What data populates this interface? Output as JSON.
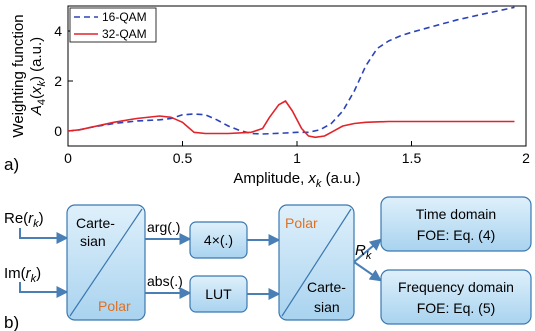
{
  "chart_data": {
    "type": "line",
    "panel_label": "a)",
    "xlabel": "Amplitude, ",
    "xlabel_var": "x",
    "xlabel_sub": "k",
    "xlabel_unit": " (a.u.)",
    "ylabel_line1": "Weighting function",
    "ylabel_f": "A",
    "ylabel_f_sub": "4",
    "ylabel_open": "(",
    "ylabel_var": "x",
    "ylabel_var_sub": "k",
    "ylabel_unit": ") (a.u.)",
    "xlim": [
      0,
      2
    ],
    "ylim": [
      -0.6,
      5
    ],
    "xticks": [
      0,
      0.5,
      1,
      1.5,
      2
    ],
    "xtick_labels": [
      "0",
      "0.5",
      "1",
      "1.5",
      "2"
    ],
    "yticks": [
      0,
      2,
      4
    ],
    "ytick_labels": [
      "0",
      "2",
      "4"
    ],
    "grid": false,
    "legend": "top-left",
    "series": [
      {
        "name": "16-QAM",
        "color": "#2b43b8",
        "dash": true,
        "x": [
          0,
          0.05,
          0.1,
          0.2,
          0.3,
          0.4,
          0.45,
          0.5,
          0.55,
          0.6,
          0.65,
          0.7,
          0.75,
          0.8,
          0.85,
          0.9,
          0.95,
          1.0,
          1.05,
          1.1,
          1.15,
          1.2,
          1.25,
          1.3,
          1.35,
          1.4,
          1.45,
          1.5,
          1.6,
          1.7,
          1.8,
          1.9,
          1.95
        ],
        "y": [
          0,
          0.05,
          0.15,
          0.3,
          0.4,
          0.45,
          0.5,
          0.65,
          0.68,
          0.65,
          0.45,
          0.2,
          0.02,
          -0.1,
          -0.12,
          -0.1,
          -0.08,
          -0.05,
          -0.05,
          0.05,
          0.3,
          0.8,
          1.6,
          2.6,
          3.3,
          3.6,
          3.8,
          3.95,
          4.2,
          4.45,
          4.65,
          4.85,
          4.95
        ]
      },
      {
        "name": "32-QAM",
        "color": "#e0242a",
        "dash": false,
        "x": [
          0,
          0.05,
          0.1,
          0.2,
          0.3,
          0.4,
          0.45,
          0.5,
          0.55,
          0.6,
          0.7,
          0.8,
          0.85,
          0.88,
          0.92,
          0.95,
          0.98,
          1.02,
          1.05,
          1.08,
          1.12,
          1.15,
          1.2,
          1.25,
          1.3,
          1.4,
          1.5,
          1.7,
          1.95
        ],
        "y": [
          0,
          0.05,
          0.15,
          0.35,
          0.5,
          0.6,
          0.55,
          0.35,
          -0.05,
          -0.1,
          -0.1,
          -0.05,
          0.1,
          0.55,
          1.05,
          1.2,
          0.8,
          0.1,
          -0.2,
          -0.25,
          -0.2,
          -0.05,
          0.2,
          0.3,
          0.35,
          0.38,
          0.38,
          0.38,
          0.38
        ]
      }
    ]
  },
  "diagram": {
    "panel_label": "b)",
    "input_re_prefix": "Re(",
    "input_re_var": "r",
    "input_re_sub": "k",
    "input_re_suffix": ")",
    "input_im_prefix": "Im(",
    "input_im_var": "r",
    "input_im_sub": "k",
    "input_im_suffix": ")",
    "converter1_top_line1": "Carte-",
    "converter1_top_line2": "sian",
    "converter1_bottom": "Polar",
    "arg_label": "arg(.)",
    "abs_label": "abs(.)",
    "multiply_block": "4×(.)",
    "lut_block": "LUT",
    "converter2_top": "Polar",
    "converter2_bottom_line1": "Carte-",
    "converter2_bottom_line2": "sian",
    "rk_var": "R",
    "rk_sub": "k",
    "time_line1": "Time domain",
    "time_line2": "FOE: Eq. (4)",
    "freq_line1": "Frequency domain",
    "freq_line2": "FOE: Eq. (5)",
    "colors": {
      "block_fill": "#bfe0f4",
      "block_stroke": "#3a78b0",
      "arrow": "#4a7fb5",
      "accent_text": "#e07020"
    }
  }
}
